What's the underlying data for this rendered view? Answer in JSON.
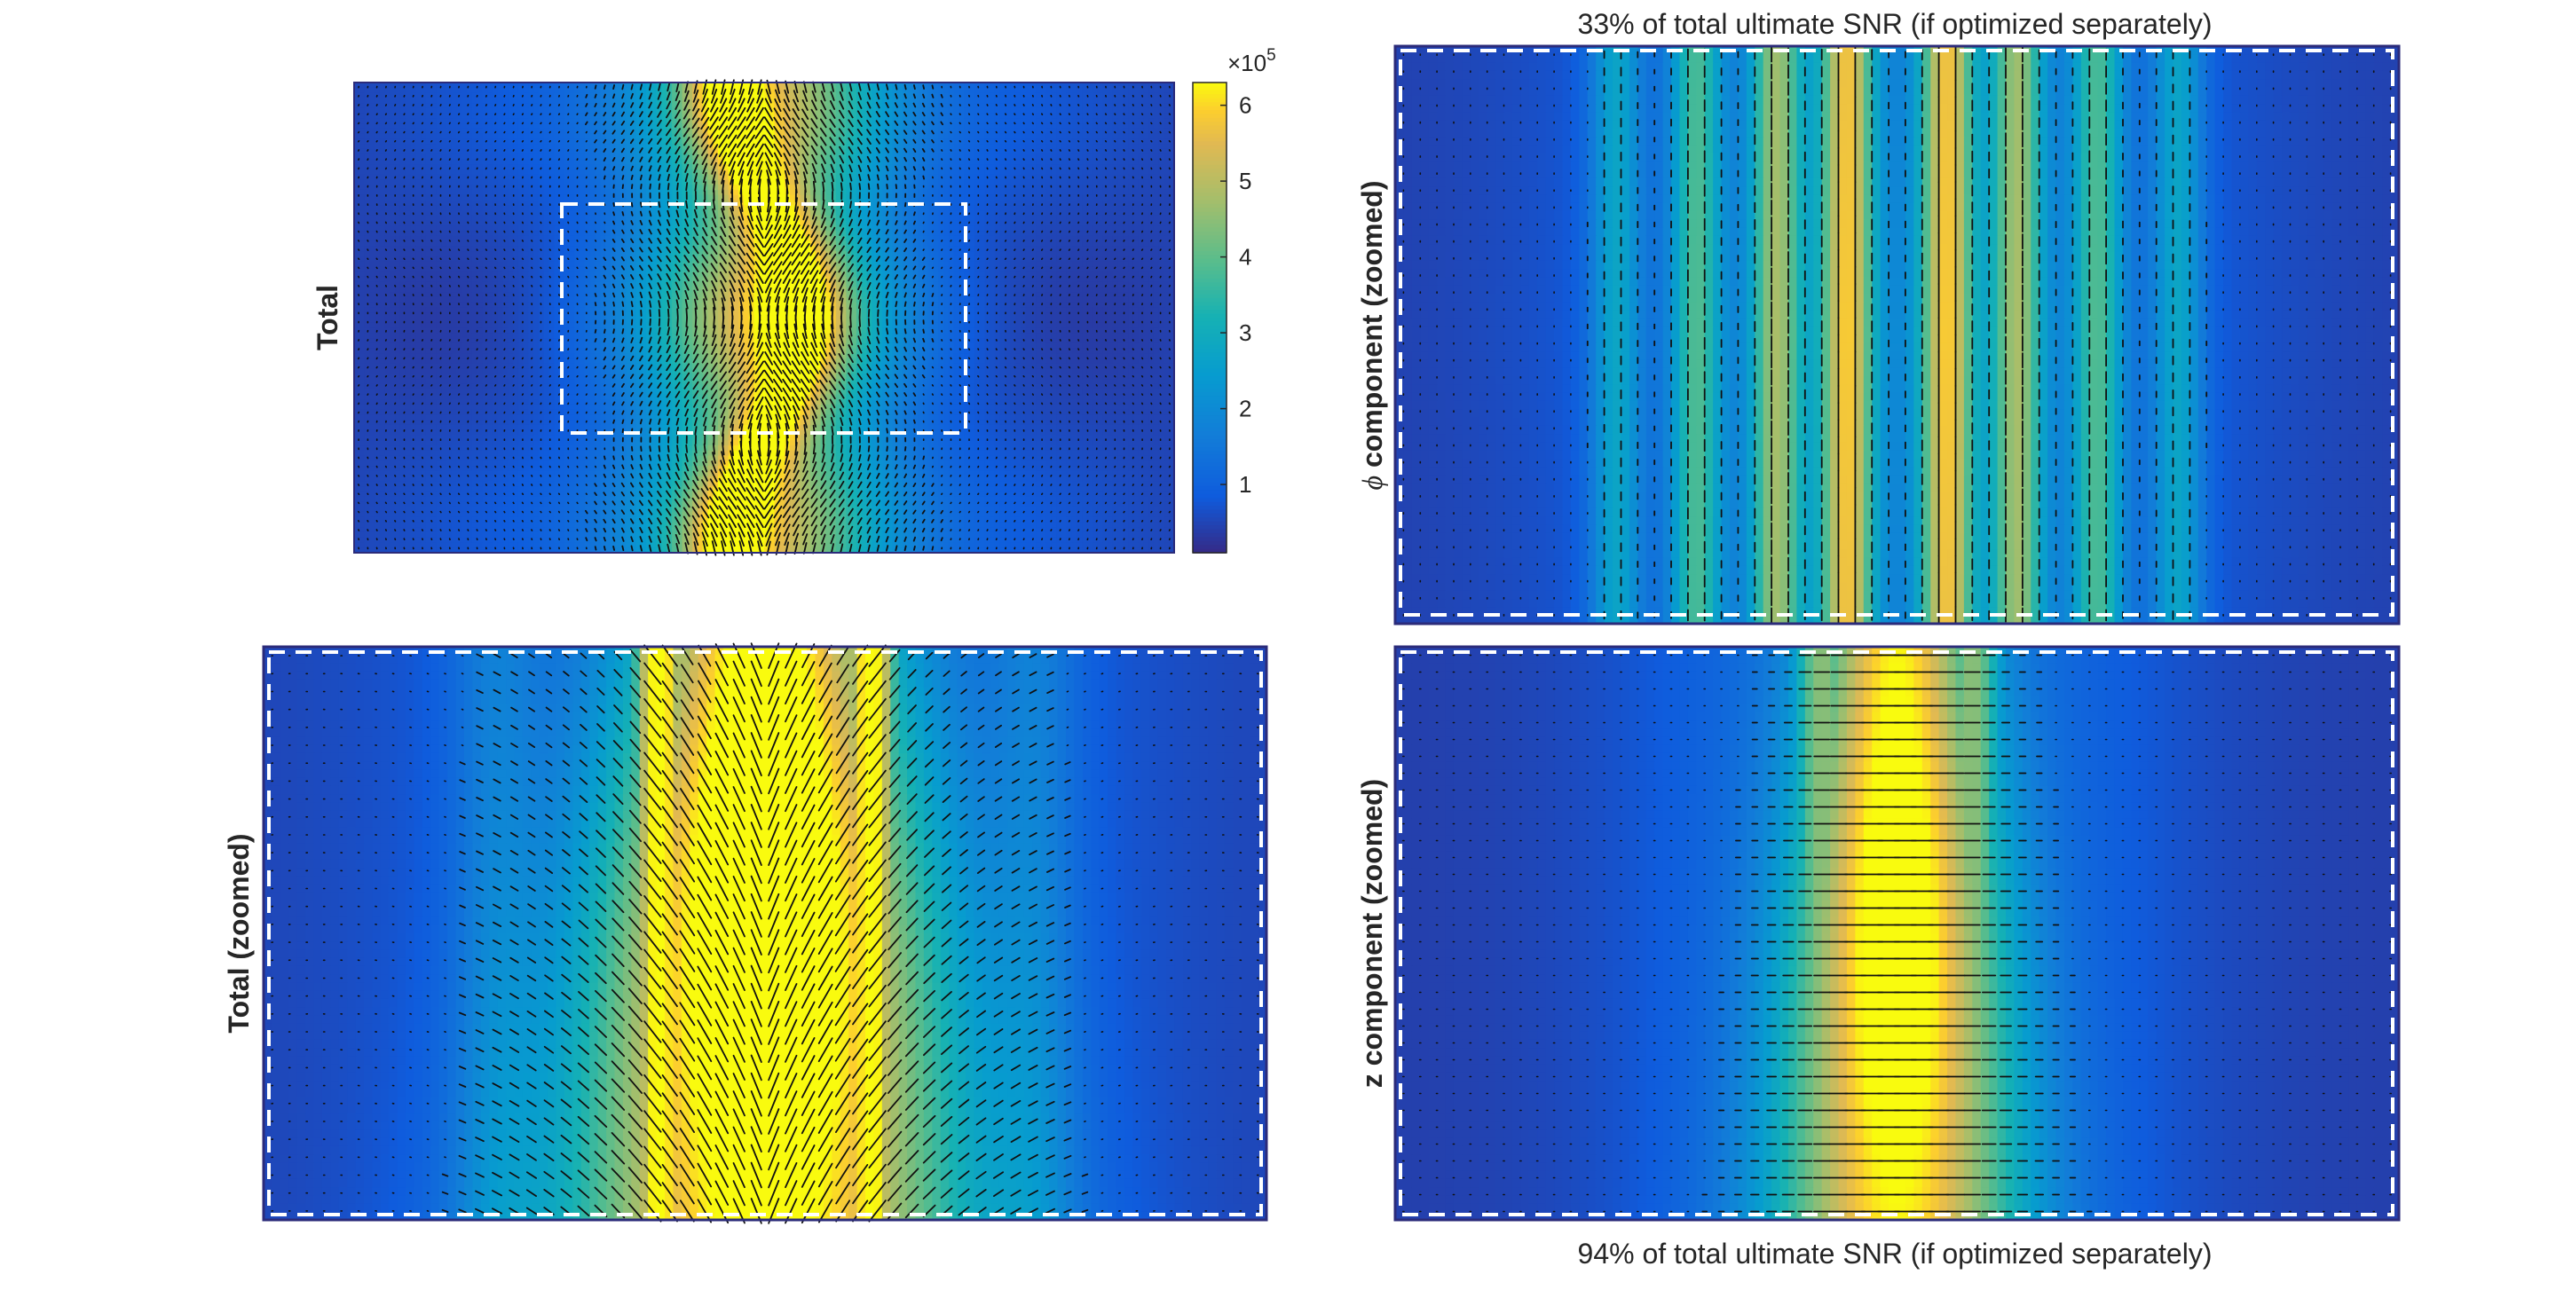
{
  "figure": {
    "panels": [
      {
        "id": "total",
        "ylabel": "Total",
        "title": "",
        "caption": "",
        "ylabel_italic_prefix": "",
        "has_zoom_box": true
      },
      {
        "id": "phi",
        "ylabel": " component (zoomed)",
        "ylabel_italic_prefix": "ϕ",
        "title": "33% of total ultimate SNR (if optimized separately)",
        "caption": ""
      },
      {
        "id": "total_zoomed",
        "ylabel": "Total (zoomed)",
        "ylabel_italic_prefix": "",
        "title": "",
        "caption": ""
      },
      {
        "id": "z",
        "ylabel": "z component (zoomed)",
        "ylabel_italic_prefix": "",
        "title": "",
        "caption": "94% of total ultimate SNR (if optimized separately)"
      }
    ],
    "colorbar": {
      "exponent_label": "×10",
      "exponent_power": "5",
      "ticks": [
        "1",
        "2",
        "3",
        "4",
        "5",
        "6"
      ],
      "range": [
        0.1,
        6.3
      ]
    }
  },
  "chart_data": [
    {
      "type": "heatmap",
      "name": "Total",
      "description_values": "ultimate SNR current pattern magnitude with quiver arrows",
      "x_range": [
        -1,
        1
      ],
      "y_range": [
        -1,
        1
      ],
      "value_range": [
        0.1,
        6.3
      ],
      "colormap": "parula",
      "peak_value": 6.2,
      "features": {
        "central_band_center_x": 0.0,
        "central_band_halfwidth": 0.12,
        "zoom_box": {
          "x": [
            -0.5,
            0.5
          ],
          "y": [
            -0.5,
            0.5
          ]
        }
      }
    },
    {
      "type": "heatmap",
      "name": "phi component (zoomed)",
      "x_range": [
        -0.5,
        0.5
      ],
      "y_range": [
        -0.5,
        0.5
      ],
      "value_range": [
        0.1,
        6.3
      ],
      "colormap": "parula",
      "peak_value": 4.5,
      "percent_of_total": 33,
      "features": {
        "vertical_stripes_x": [
          -0.28,
          -0.22,
          -0.14,
          -0.06,
          0.06,
          0.14,
          0.22,
          0.28
        ],
        "arrow_direction": "vertical"
      }
    },
    {
      "type": "heatmap",
      "name": "Total (zoomed)",
      "x_range": [
        -0.5,
        0.5
      ],
      "y_range": [
        -0.5,
        0.5
      ],
      "value_range": [
        0.1,
        6.3
      ],
      "colormap": "parula",
      "peak_value": 6.2,
      "features": {
        "arch_center_x": 0.0,
        "side_bars_x": [
          -0.1,
          0.1
        ]
      }
    },
    {
      "type": "heatmap",
      "name": "z component (zoomed)",
      "x_range": [
        -0.5,
        0.5
      ],
      "y_range": [
        -0.5,
        0.5
      ],
      "value_range": [
        0.1,
        6.3
      ],
      "colormap": "parula",
      "peak_value": 5.4,
      "percent_of_total": 94,
      "features": {
        "central_column_x": 0.0,
        "arrow_direction": "horizontal"
      }
    }
  ]
}
